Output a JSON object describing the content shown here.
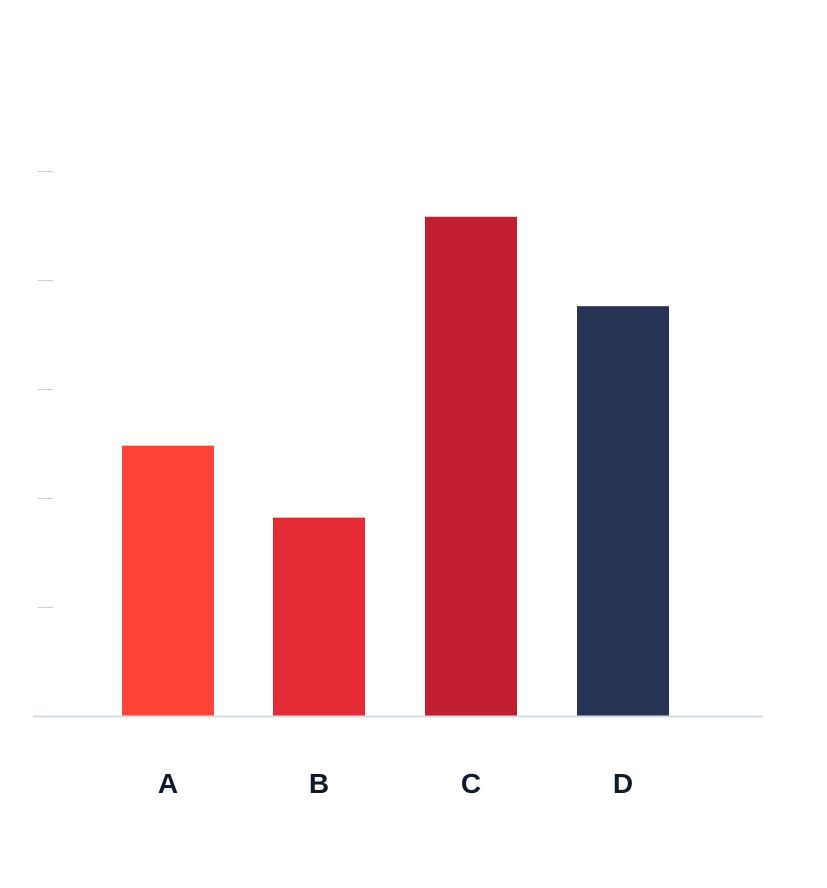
{
  "chart_data": {
    "type": "bar",
    "categories": [
      "A",
      "B",
      "C",
      "D"
    ],
    "values": [
      2.48,
      1.82,
      4.58,
      3.76
    ],
    "ylim": [
      0,
      5
    ],
    "yticks": [
      0,
      1,
      2,
      3,
      4,
      5
    ],
    "title": "",
    "xlabel": "",
    "ylabel": "",
    "grid": false,
    "legend": "none",
    "colors": [
      "#ff4336",
      "#e52b35",
      "#c11f2f",
      "#263354"
    ],
    "axis_color": "#d4dce2",
    "tick_color": "#cfcfcf",
    "label_color": "#0f1b2d"
  }
}
